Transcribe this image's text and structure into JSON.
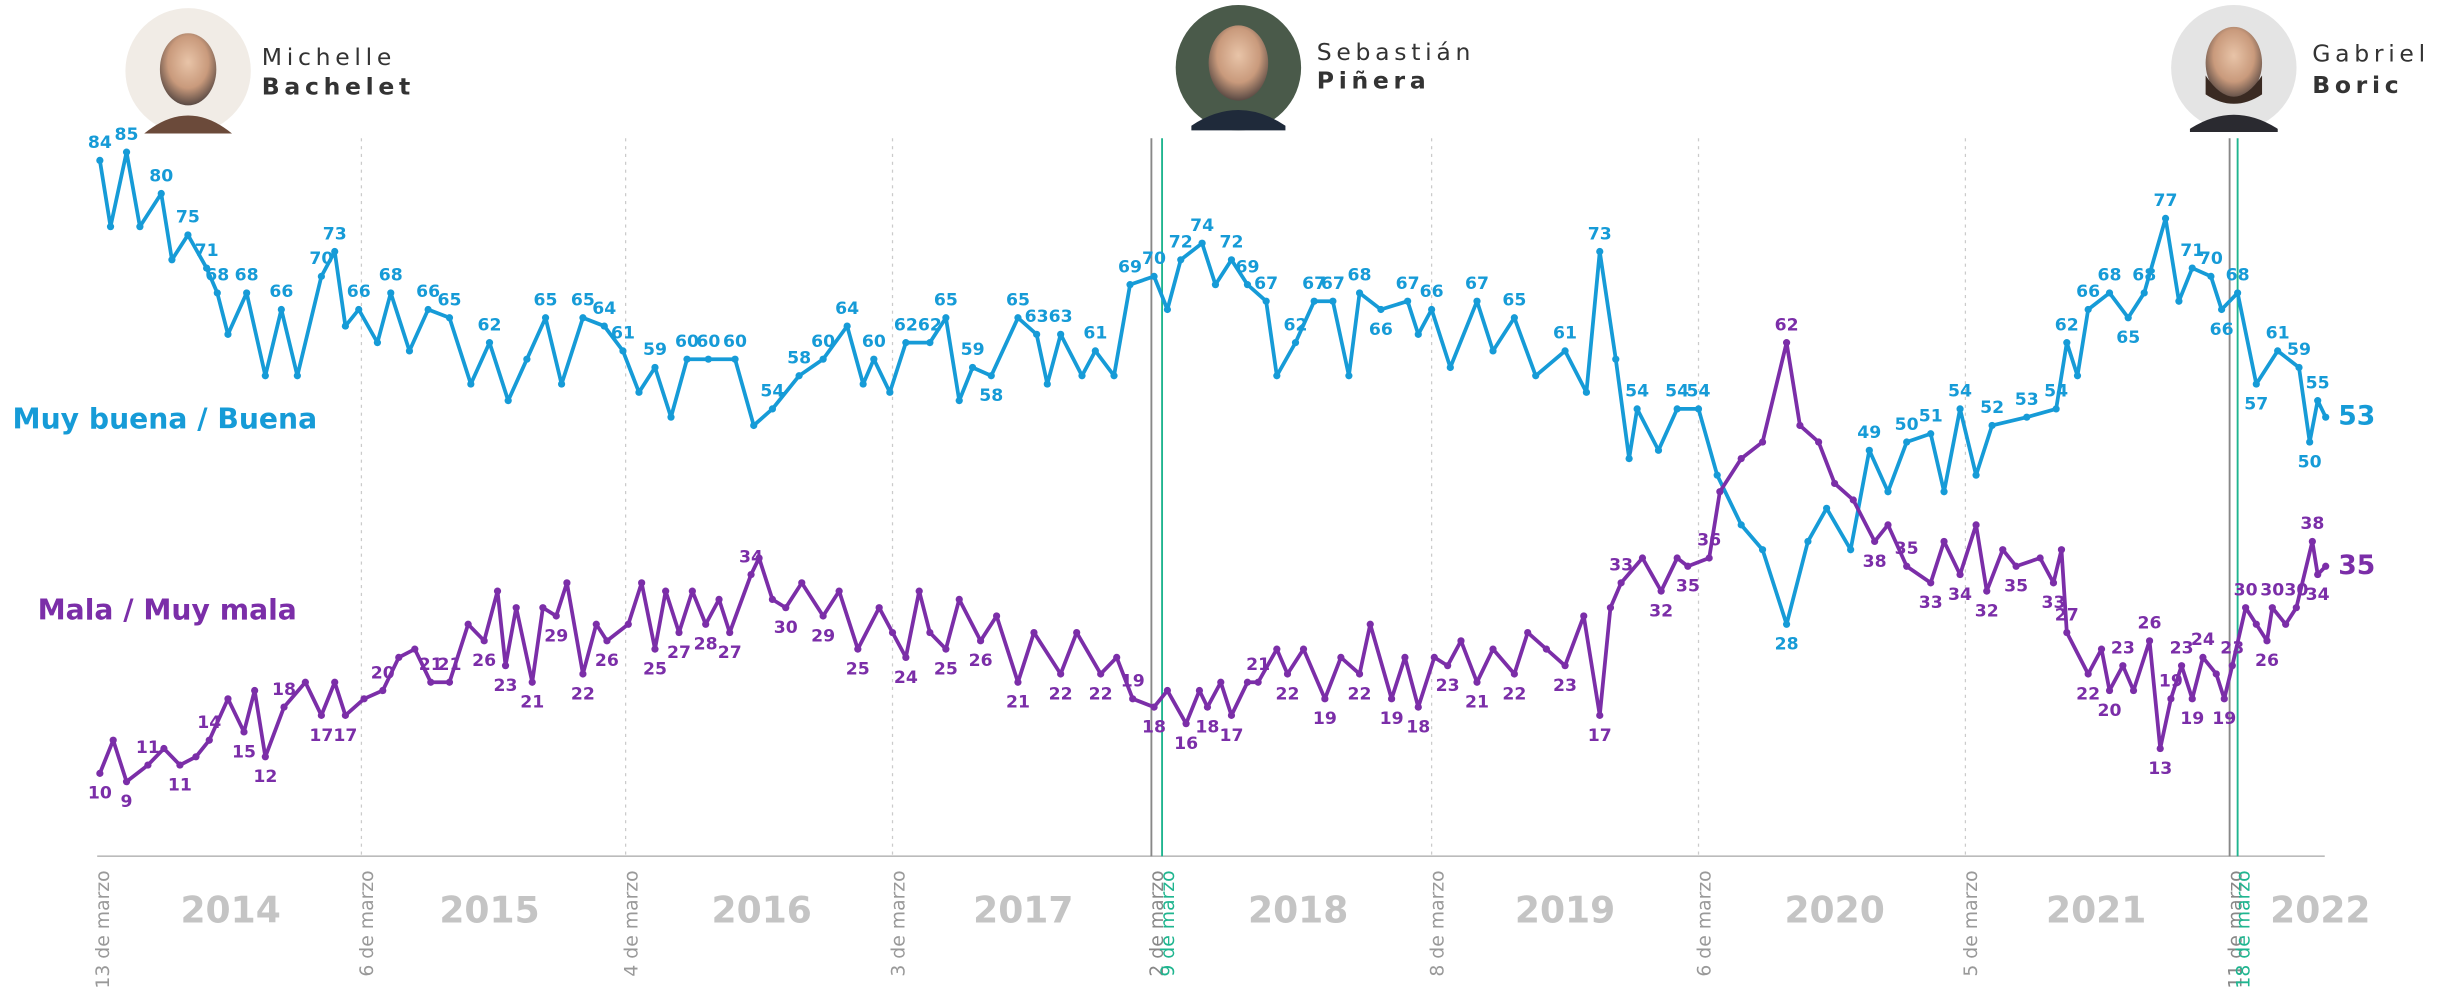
{
  "chart_data": {
    "type": "line",
    "xlim": [
      2014.2,
      2022.55
    ],
    "ylim": [
      0,
      88
    ],
    "series": [
      {
        "name": "Muy buena / Buena",
        "color": "#169bd7",
        "x": [
          2014.21,
          2014.25,
          2014.31,
          2014.36,
          2014.44,
          2014.48,
          2014.54,
          2014.61,
          2014.65,
          2014.69,
          2014.76,
          2014.83,
          2014.89,
          2014.95,
          2015.04,
          2015.09,
          2015.13,
          2015.18,
          2015.25,
          2015.3,
          2015.37,
          2015.44,
          2015.52,
          2015.6,
          2015.67,
          2015.74,
          2015.81,
          2015.88,
          2015.94,
          2016.02,
          2016.1,
          2016.17,
          2016.23,
          2016.29,
          2016.35,
          2016.41,
          2016.49,
          2016.59,
          2016.66,
          2016.73,
          2016.83,
          2016.92,
          2017.01,
          2017.07,
          2017.11,
          2017.17,
          2017.23,
          2017.32,
          2017.38,
          2017.43,
          2017.48,
          2017.55,
          2017.65,
          2017.72,
          2017.76,
          2017.81,
          2017.89,
          2017.94,
          2018.01,
          2018.07,
          2018.16,
          2018.21,
          2018.26,
          2018.34,
          2018.39,
          2018.45,
          2018.51,
          2018.58,
          2018.62,
          2018.69,
          2018.76,
          2018.83,
          2018.89,
          2018.93,
          2019.01,
          2019.11,
          2019.15,
          2019.2,
          2019.27,
          2019.37,
          2019.43,
          2019.51,
          2019.59,
          2019.7,
          2019.78,
          2019.83,
          2019.89,
          2019.94,
          2019.97,
          2020.05,
          2020.12,
          2020.2,
          2020.27,
          2020.36,
          2020.44,
          2020.53,
          2020.61,
          2020.68,
          2020.77,
          2020.84,
          2020.91,
          2020.98,
          2021.07,
          2021.12,
          2021.18,
          2021.24,
          2021.3,
          2021.43,
          2021.54,
          2021.58,
          2021.62,
          2021.66,
          2021.74,
          2021.81,
          2021.87,
          2021.95,
          2022.0,
          2022.05,
          2022.12,
          2022.16,
          2022.22,
          2022.29,
          2022.37,
          2022.45,
          2022.49,
          2022.52,
          2022.55
        ],
        "values": [
          84,
          76,
          85,
          76,
          80,
          72,
          75,
          71,
          68,
          63,
          68,
          58,
          66,
          58,
          70,
          73,
          64,
          66,
          62,
          68,
          61,
          66,
          65,
          57,
          62,
          55,
          60,
          65,
          57,
          65,
          64,
          61,
          56,
          59,
          53,
          60,
          60,
          60,
          52,
          54,
          58,
          60,
          64,
          57,
          60,
          56,
          62,
          62,
          65,
          55,
          59,
          58,
          65,
          63,
          57,
          63,
          58,
          61,
          58,
          69,
          70,
          66,
          72,
          74,
          69,
          72,
          69,
          67,
          58,
          62,
          67,
          67,
          58,
          68,
          66,
          67,
          63,
          66,
          59,
          67,
          61,
          65,
          58,
          61,
          56,
          73,
          60,
          48,
          54,
          49,
          54,
          54,
          46,
          40,
          37,
          28,
          38,
          42,
          37,
          49,
          44,
          50,
          51,
          44,
          54,
          46,
          52,
          53,
          54,
          62,
          58,
          66,
          68,
          65,
          68,
          77,
          67,
          71,
          70,
          66,
          68,
          57,
          61,
          59,
          50,
          55,
          53
        ],
        "value_labels": [
          "84",
          null,
          "85",
          null,
          "80",
          null,
          "75",
          "71",
          "68",
          null,
          "68",
          null,
          "66",
          null,
          "70",
          "73",
          null,
          "66",
          null,
          "68",
          null,
          "66",
          "65",
          null,
          "62",
          null,
          null,
          "65",
          null,
          "65",
          "64",
          "61",
          null,
          "59",
          null,
          "60",
          "60",
          "60",
          null,
          "54",
          "58",
          "60",
          "64",
          null,
          "60",
          null,
          "62",
          "62",
          "65",
          null,
          "59",
          "58",
          "65",
          "63",
          null,
          "63",
          null,
          "61",
          null,
          "69",
          "70",
          null,
          "72",
          "74",
          null,
          "72",
          "69",
          "67",
          null,
          "62",
          "67",
          "67",
          null,
          "68",
          "66",
          "67",
          null,
          "66",
          null,
          "67",
          null,
          "65",
          null,
          "61",
          null,
          "73",
          null,
          null,
          "54",
          null,
          "54",
          "54",
          null,
          null,
          null,
          "28",
          null,
          null,
          null,
          "49",
          null,
          "50",
          "51",
          null,
          "54",
          null,
          "52",
          "53",
          "54",
          "62",
          null,
          "66",
          "68",
          "65",
          "68",
          "77",
          null,
          "71",
          "70",
          "66",
          "68",
          "57",
          "61",
          "59",
          "50",
          "55",
          "53"
        ]
      },
      {
        "name": "Mala / Muy mala",
        "color": "#7b2ea8",
        "x": [
          2014.21,
          2014.26,
          2014.31,
          2014.39,
          2014.45,
          2014.51,
          2014.57,
          2014.62,
          2014.69,
          2014.75,
          2014.79,
          2014.83,
          2014.9,
          2014.98,
          2015.04,
          2015.09,
          2015.13,
          2015.2,
          2015.27,
          2015.33,
          2015.39,
          2015.45,
          2015.52,
          2015.59,
          2015.65,
          2015.7,
          2015.73,
          2015.77,
          2015.83,
          2015.87,
          2015.92,
          2015.96,
          2016.02,
          2016.07,
          2016.11,
          2016.19,
          2016.24,
          2016.29,
          2016.33,
          2016.38,
          2016.43,
          2016.48,
          2016.53,
          2016.57,
          2016.65,
          2016.68,
          2016.73,
          2016.78,
          2016.84,
          2016.92,
          2016.98,
          2017.05,
          2017.13,
          2017.18,
          2017.23,
          2017.28,
          2017.32,
          2017.38,
          2017.43,
          2017.51,
          2017.57,
          2017.65,
          2017.71,
          2017.81,
          2017.87,
          2017.96,
          2018.02,
          2018.08,
          2018.16,
          2018.21,
          2018.28,
          2018.33,
          2018.36,
          2018.41,
          2018.45,
          2018.51,
          2018.55,
          2018.62,
          2018.66,
          2018.72,
          2018.8,
          2018.86,
          2018.93,
          2018.97,
          2019.05,
          2019.1,
          2019.15,
          2019.21,
          2019.26,
          2019.31,
          2019.37,
          2019.43,
          2019.51,
          2019.56,
          2019.63,
          2019.7,
          2019.77,
          2019.83,
          2019.87,
          2019.91,
          2019.99,
          2020.06,
          2020.12,
          2020.16,
          2020.24,
          2020.28,
          2020.36,
          2020.44,
          2020.53,
          2020.58,
          2020.65,
          2020.71,
          2020.78,
          2020.86,
          2020.91,
          2020.98,
          2021.07,
          2021.12,
          2021.18,
          2021.24,
          2021.28,
          2021.34,
          2021.39,
          2021.48,
          2021.53,
          2021.56,
          2021.58,
          2021.66,
          2021.71,
          2021.74,
          2021.79,
          2021.83,
          2021.89,
          2021.93,
          2021.97,
          2022.01,
          2022.05,
          2022.09,
          2022.14,
          2022.17,
          2022.2,
          2022.25,
          2022.29,
          2022.33,
          2022.35,
          2022.4,
          2022.44,
          2022.5,
          2022.52,
          2022.55
        ],
        "values": [
          10,
          14,
          9,
          11,
          13,
          11,
          12,
          14,
          19,
          15,
          20,
          12,
          18,
          21,
          17,
          21,
          17,
          19,
          20,
          24,
          25,
          21,
          21,
          28,
          26,
          32,
          23,
          30,
          21,
          30,
          29,
          33,
          22,
          28,
          26,
          28,
          33,
          25,
          32,
          27,
          32,
          28,
          31,
          27,
          34,
          36,
          31,
          30,
          33,
          29,
          32,
          25,
          30,
          27,
          24,
          32,
          27,
          25,
          31,
          26,
          29,
          21,
          27,
          22,
          27,
          22,
          24,
          19,
          18,
          20,
          16,
          20,
          18,
          21,
          17,
          21,
          21,
          25,
          22,
          25,
          19,
          24,
          22,
          28,
          19,
          24,
          18,
          24,
          23,
          26,
          21,
          25,
          22,
          27,
          25,
          23,
          29,
          17,
          30,
          33,
          36,
          32,
          36,
          35,
          36,
          44,
          48,
          50,
          62,
          52,
          50,
          45,
          43,
          38,
          40,
          35,
          33,
          38,
          34,
          40,
          32,
          37,
          35,
          36,
          33,
          37,
          27,
          22,
          25,
          20,
          23,
          20,
          26,
          13,
          19,
          23,
          19,
          24,
          22,
          19,
          23,
          30,
          28,
          26,
          30,
          28,
          30,
          38,
          34,
          35
        ],
        "value_labels": [
          "10",
          null,
          "9",
          "11",
          null,
          "11",
          null,
          "14",
          null,
          "15",
          null,
          "12",
          "18",
          null,
          "17",
          null,
          "17",
          null,
          "20",
          null,
          null,
          "21",
          "21",
          null,
          "26",
          null,
          "23",
          null,
          "21",
          null,
          "29",
          null,
          "22",
          null,
          "26",
          null,
          null,
          "25",
          null,
          "27",
          null,
          "28",
          null,
          "27",
          "34",
          null,
          null,
          "30",
          null,
          "29",
          null,
          "25",
          null,
          null,
          "24",
          null,
          null,
          "25",
          null,
          "26",
          null,
          "21",
          null,
          "22",
          null,
          "22",
          null,
          "19",
          "18",
          null,
          "16",
          null,
          "18",
          null,
          "17",
          null,
          "21",
          null,
          "22",
          null,
          "19",
          null,
          "22",
          null,
          "19",
          null,
          "18",
          null,
          "23",
          null,
          "21",
          null,
          "22",
          null,
          null,
          "23",
          null,
          "17",
          null,
          "33",
          null,
          "32",
          null,
          "35",
          "36",
          null,
          null,
          null,
          "62",
          null,
          null,
          null,
          null,
          "38",
          null,
          "35",
          "33",
          null,
          "34",
          null,
          "32",
          null,
          "35",
          null,
          "33",
          null,
          "27",
          "22",
          null,
          "20",
          "23",
          null,
          "26",
          "13",
          "19",
          "23",
          "19",
          "24",
          null,
          "19",
          "23",
          "30",
          null,
          "26",
          "30",
          null,
          "30",
          "38",
          "34",
          "35"
        ]
      }
    ],
    "markers": [
      {
        "x": 2014.2,
        "label": "13 de marzo",
        "color": "#999999",
        "line": "none"
      },
      {
        "x": 2015.19,
        "label": "6 de marzo",
        "color": "#999999",
        "line": "dotted"
      },
      {
        "x": 2016.18,
        "label": "4 de marzo",
        "color": "#999999",
        "line": "dotted"
      },
      {
        "x": 2017.18,
        "label": "3 de marzo",
        "color": "#999999",
        "line": "dotted"
      },
      {
        "x": 2018.15,
        "label": "2 de marzo",
        "color": "#888888",
        "line": "solid"
      },
      {
        "x": 2018.19,
        "label": "9 de marzo",
        "color": "#1fb58f",
        "line": "solid"
      },
      {
        "x": 2019.2,
        "label": "8 de marzo",
        "color": "#999999",
        "line": "dotted"
      },
      {
        "x": 2020.2,
        "label": "6 de marzo",
        "color": "#999999",
        "line": "dotted"
      },
      {
        "x": 2021.2,
        "label": "5 de marzo",
        "color": "#999999",
        "line": "dotted"
      },
      {
        "x": 2022.19,
        "label": "11 de marzo",
        "color": "#888888",
        "line": "solid"
      },
      {
        "x": 2022.22,
        "label": "18 de marzo",
        "color": "#1fb58f",
        "line": "solid"
      }
    ],
    "years": [
      {
        "x": 2014.7,
        "label": "2014"
      },
      {
        "x": 2015.67,
        "label": "2015"
      },
      {
        "x": 2016.69,
        "label": "2016"
      },
      {
        "x": 2017.67,
        "label": "2017"
      },
      {
        "x": 2018.7,
        "label": "2018"
      },
      {
        "x": 2019.7,
        "label": "2019"
      },
      {
        "x": 2020.71,
        "label": "2020"
      },
      {
        "x": 2021.69,
        "label": "2021"
      },
      {
        "x": 2022.53,
        "label": "2022"
      }
    ],
    "people": [
      {
        "first": "Michelle",
        "last": "Bachelet"
      },
      {
        "first": "Sebastián",
        "last": "Piñera"
      },
      {
        "first": "Gabriel",
        "last": "Boric"
      }
    ]
  }
}
